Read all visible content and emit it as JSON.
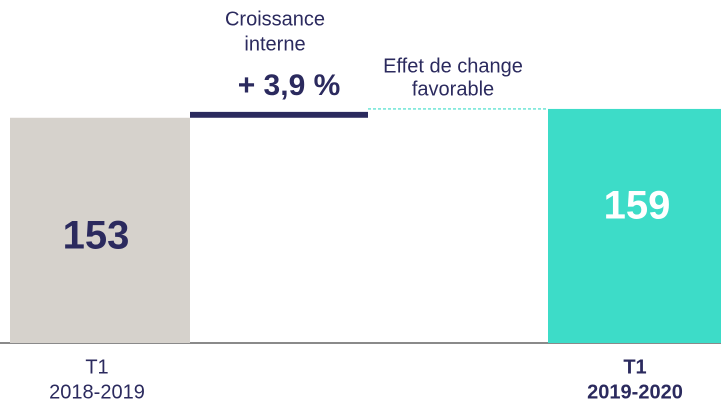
{
  "chart_data": {
    "type": "waterfall",
    "categories": [
      [
        "T1",
        "2018-2019"
      ],
      [
        "Croissance",
        "interne"
      ],
      [
        "Effet de change",
        "favorable"
      ],
      [
        "T1",
        "2019-2020"
      ]
    ],
    "measure": [
      "absolute",
      "relative",
      "relative",
      "total"
    ],
    "values": [
      153,
      4,
      2,
      159
    ],
    "colors": [
      "#d6d2cc",
      "#2b2a5e",
      "#3ddcc8",
      "#3ddcc8"
    ],
    "dashed": [
      false,
      false,
      true,
      false
    ],
    "ylim": [
      0,
      233
    ],
    "annotations": [
      "+ 3,9 %"
    ]
  }
}
